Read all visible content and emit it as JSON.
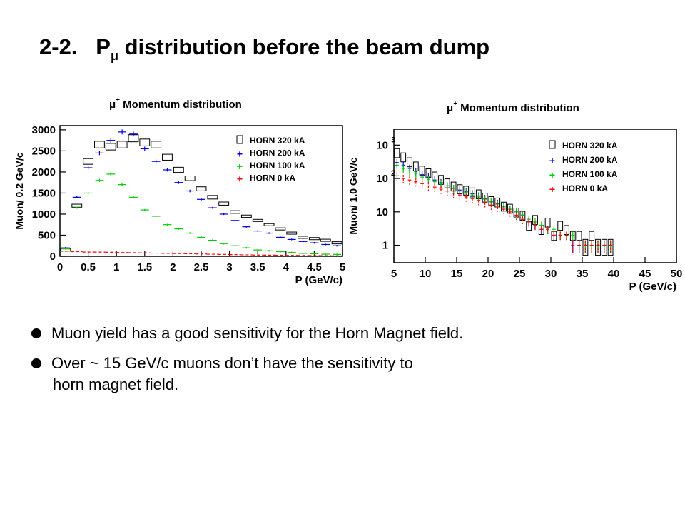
{
  "title": {
    "number": "2-2.",
    "main": "P",
    "subscript": "μ",
    "rest": " distribution before the beam dump"
  },
  "bullets": [
    {
      "text": "Muon yield has a good sensitivity for the Horn Magnet field."
    },
    {
      "line1": "Over ~ 15 GeV/c muons don’t have the sensitivity to",
      "line2": "horn magnet field."
    }
  ],
  "colors": {
    "horn320": "#000000",
    "horn200": "#0000dd",
    "horn100": "#00cc00",
    "horn0": "#ff0000"
  },
  "chart_data": [
    {
      "type": "histogram",
      "title": "μ⁺ Momentum distribution",
      "xlabel": "P (GeV/c)",
      "ylabel": "Muon/ 0.2 GeV/c",
      "xlim": [
        0,
        5
      ],
      "ylim": [
        0,
        3100
      ],
      "yscale": "linear",
      "xticks": [
        "0",
        "0.5",
        "1",
        "1.5",
        "2",
        "2.5",
        "3",
        "3.5",
        "4",
        "4.5",
        "5"
      ],
      "yticks": [
        "0",
        "500",
        "1000",
        "1500",
        "2000",
        "2500",
        "3000"
      ],
      "legend_position": "top-right",
      "legend": [
        "HORN 320 kA",
        "HORN 200 kA",
        "HORN 100 kA",
        "HORN   0 kA"
      ],
      "x": [
        0.1,
        0.3,
        0.5,
        0.7,
        0.9,
        1.1,
        1.3,
        1.5,
        1.7,
        1.9,
        2.1,
        2.3,
        2.5,
        2.7,
        2.9,
        3.1,
        3.3,
        3.5,
        3.7,
        3.9,
        4.1,
        4.3,
        4.5,
        4.7,
        4.9
      ],
      "series": [
        {
          "name": "HORN 320 kA",
          "values": [
            150,
            1200,
            2250,
            2650,
            2600,
            2650,
            2800,
            2700,
            2650,
            2350,
            2050,
            1850,
            1600,
            1400,
            1250,
            1050,
            950,
            850,
            750,
            650,
            550,
            450,
            420,
            380,
            320
          ]
        },
        {
          "name": "HORN 200 kA",
          "values": [
            200,
            1400,
            2100,
            2450,
            2750,
            2950,
            2900,
            2550,
            2250,
            2050,
            1750,
            1550,
            1350,
            1150,
            1000,
            850,
            700,
            600,
            550,
            450,
            400,
            350,
            320,
            280,
            250
          ]
        },
        {
          "name": "HORN 100 kA",
          "values": [
            180,
            1150,
            1500,
            1800,
            1950,
            1700,
            1400,
            1100,
            950,
            750,
            650,
            550,
            450,
            380,
            300,
            250,
            200,
            150,
            130,
            110,
            90,
            70,
            60,
            50,
            45
          ]
        },
        {
          "name": "HORN   0 kA",
          "values": [
            120,
            110,
            100,
            100,
            95,
            90,
            85,
            80,
            75,
            70,
            65,
            60,
            55,
            50,
            45,
            40,
            35,
            30,
            28,
            25,
            22,
            20,
            18,
            15,
            12
          ]
        }
      ]
    },
    {
      "type": "histogram",
      "title": "μ⁺ Momentum distribution",
      "xlabel": "P (GeV/c)",
      "ylabel": "Muon/ 1.0 GeV/c",
      "xlim": [
        5,
        50
      ],
      "ylim": [
        0.3,
        3000
      ],
      "yscale": "log",
      "xticks": [
        "5",
        "10",
        "15",
        "20",
        "25",
        "30",
        "35",
        "40",
        "45",
        "50"
      ],
      "yticks": [
        {
          "base": "1",
          "exp": "",
          "value": 1
        },
        {
          "base": "10",
          "exp": "",
          "value": 10
        },
        {
          "base": "10",
          "exp": "2",
          "value": 100
        },
        {
          "base": "10",
          "exp": "3",
          "value": 1000
        }
      ],
      "legend_position": "top-right",
      "legend": [
        "HORN 320 kA",
        "HORN 200 kA",
        "HORN 100 kA",
        "HORN   0 kA"
      ],
      "x": [
        5.5,
        6.5,
        7.5,
        8.5,
        9.5,
        10.5,
        11.5,
        12.5,
        13.5,
        14.5,
        15.5,
        16.5,
        17.5,
        18.5,
        19.5,
        20.5,
        21.5,
        22.5,
        23.5,
        24.5,
        25.5,
        26.5,
        27.5,
        28.5,
        29.5,
        30.5,
        31.5,
        32.5,
        33.5,
        34.5,
        35.5,
        36.5,
        37.5,
        38.5,
        39.5
      ],
      "series": [
        {
          "name": "HORN 320 kA",
          "values": [
            600,
            450,
            320,
            240,
            180,
            150,
            120,
            95,
            75,
            60,
            50,
            45,
            40,
            35,
            28,
            22,
            20,
            15,
            13,
            10,
            8,
            4,
            6,
            3,
            5,
            2,
            4,
            3,
            2,
            2,
            1,
            2,
            1,
            1,
            1
          ]
        },
        {
          "name": "HORN 200 kA",
          "values": [
            300,
            250,
            200,
            160,
            130,
            110,
            90,
            75,
            60,
            50,
            45,
            40,
            35,
            30,
            25,
            20,
            18,
            15,
            12,
            10,
            8,
            5,
            4,
            3,
            3,
            2,
            2,
            2,
            1,
            1,
            1,
            1,
            1,
            1,
            1
          ]
        },
        {
          "name": "HORN 100 kA",
          "values": [
            250,
            200,
            170,
            140,
            110,
            95,
            80,
            70,
            60,
            50,
            42,
            38,
            32,
            28,
            24,
            20,
            17,
            14,
            12,
            10,
            8,
            6,
            5,
            4,
            3,
            3,
            2,
            2,
            2,
            1,
            1,
            1,
            1,
            1,
            1
          ]
        },
        {
          "name": "HORN   0 kA",
          "values": [
            120,
            100,
            90,
            80,
            70,
            60,
            55,
            48,
            42,
            36,
            32,
            28,
            25,
            22,
            19,
            16,
            14,
            12,
            10,
            8,
            6,
            5,
            4,
            3,
            3,
            2,
            2,
            2,
            1,
            1,
            1,
            1,
            1,
            1,
            1
          ]
        }
      ]
    }
  ]
}
